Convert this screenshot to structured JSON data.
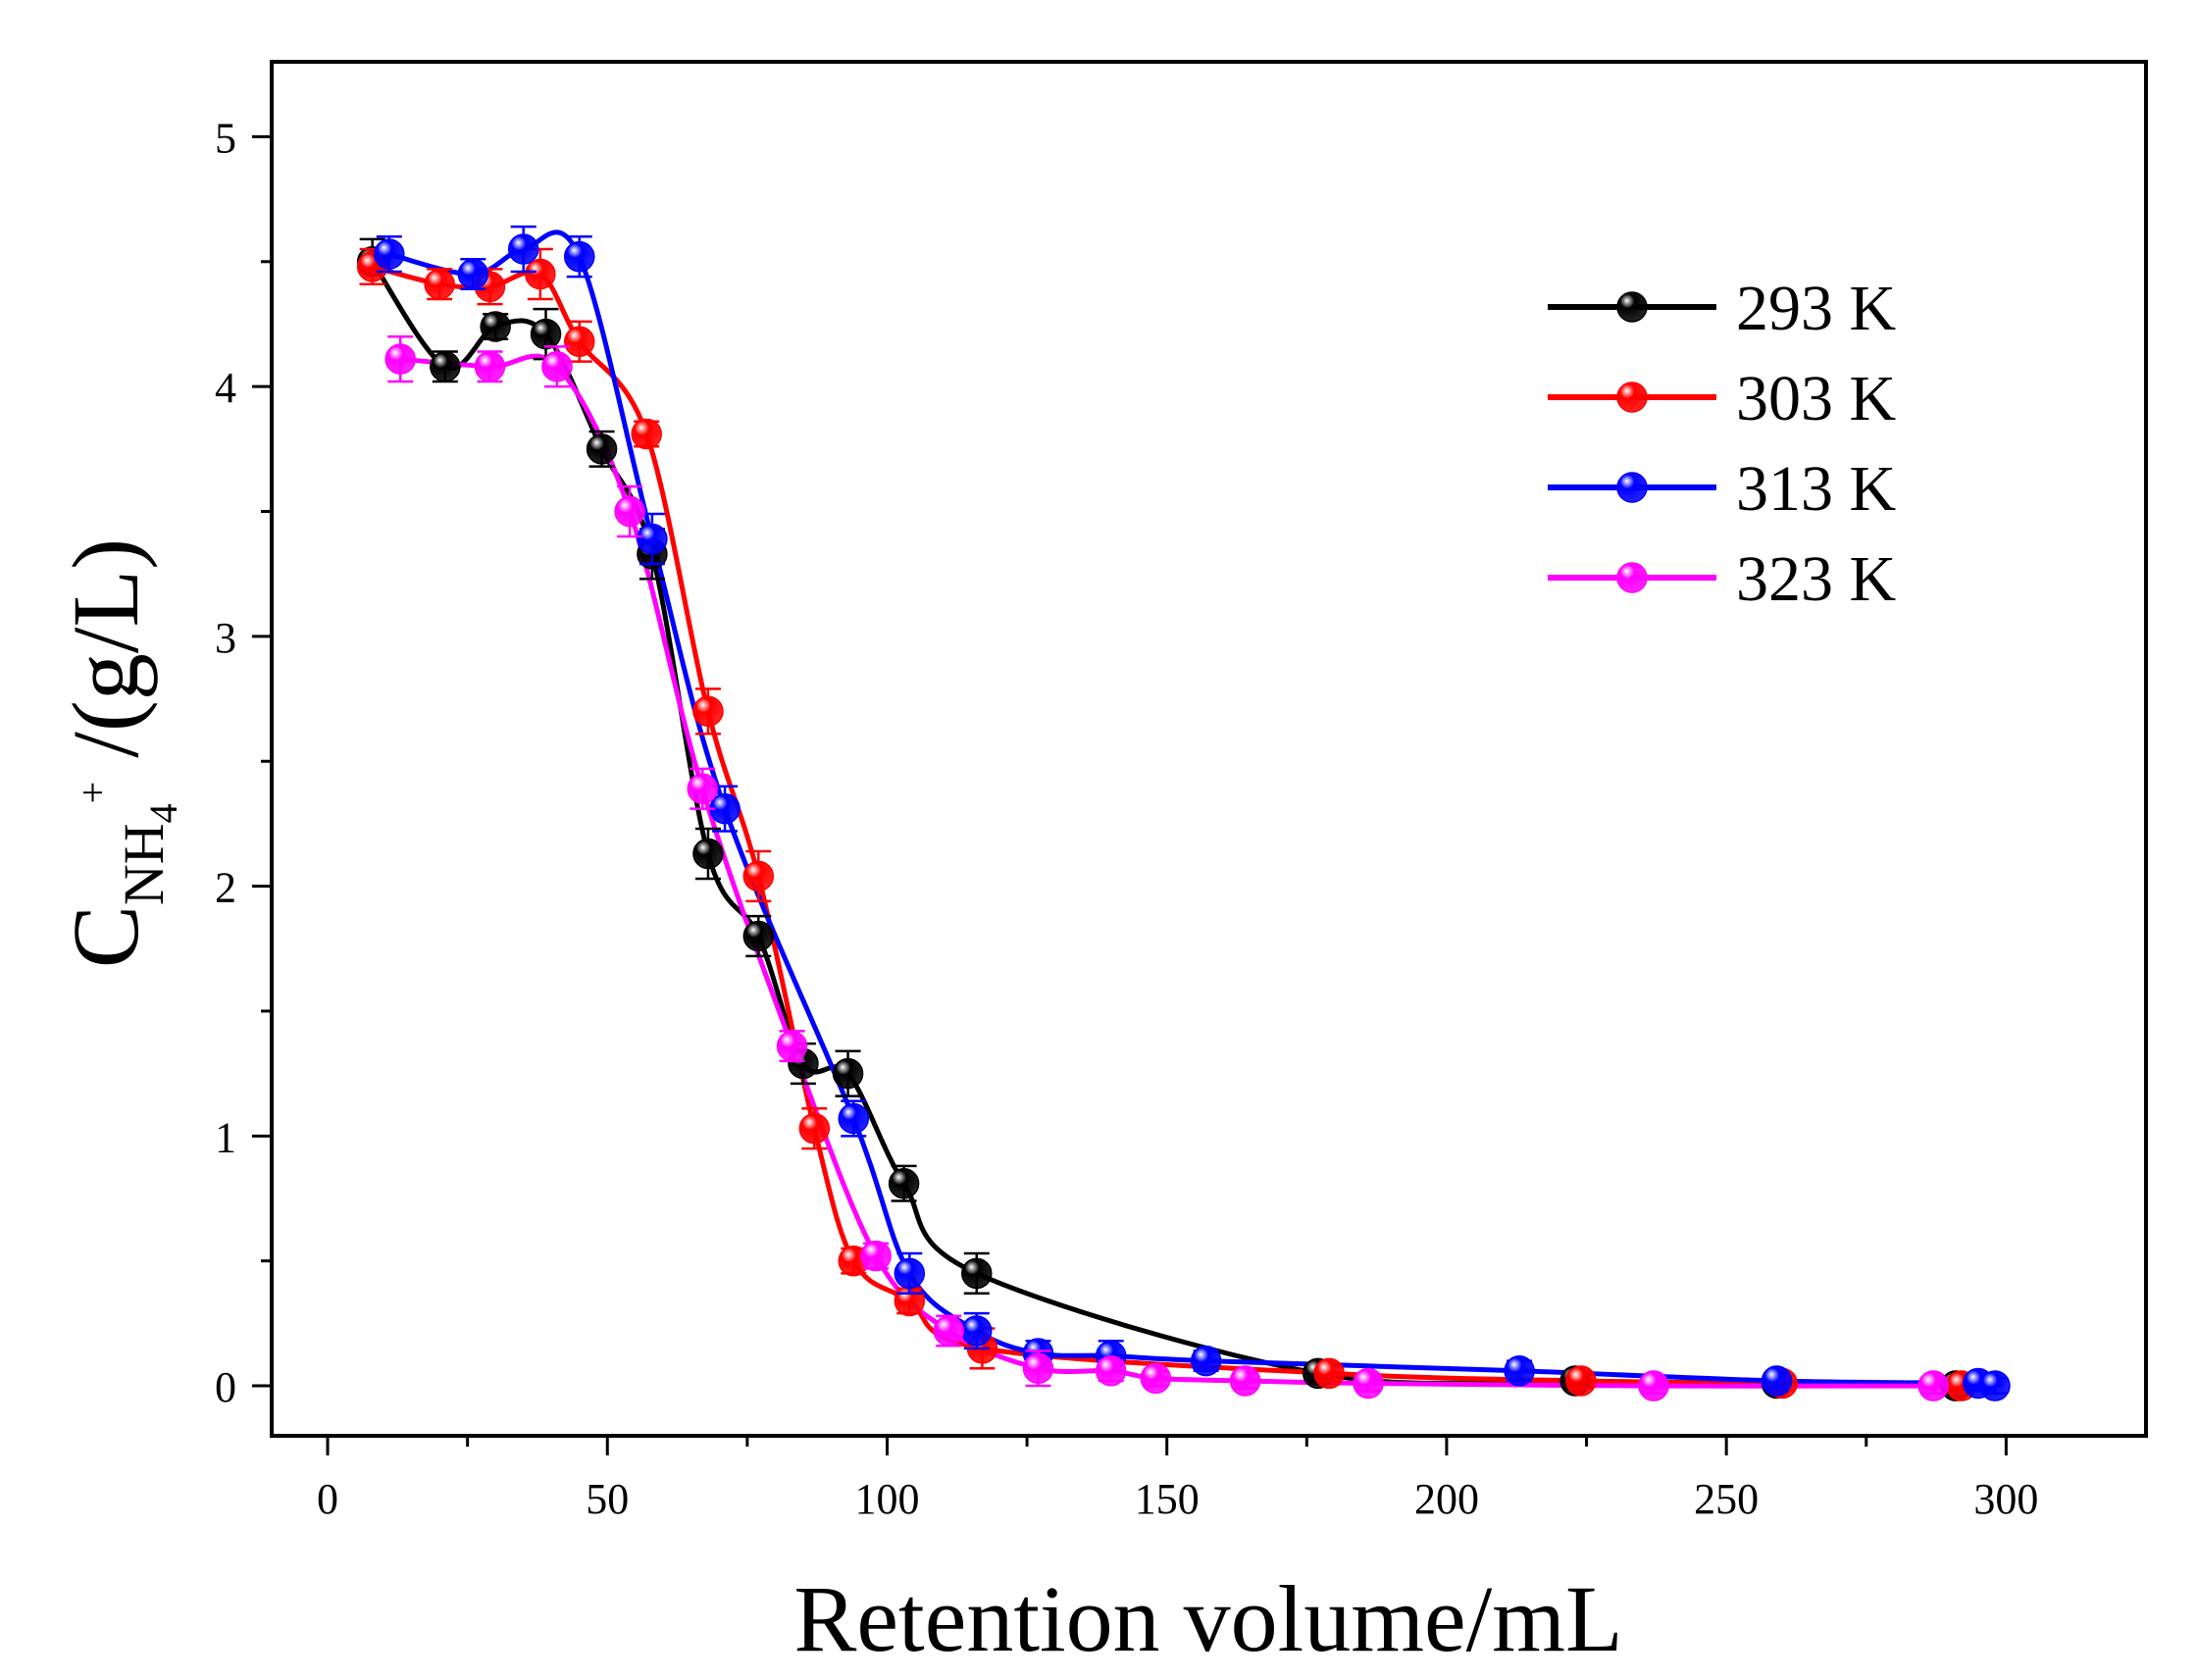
{
  "chart_data": {
    "type": "line",
    "title": "",
    "xlabel": "Retention volume/mL",
    "ylabel": {
      "main": "C",
      "subscript": "NH",
      "sub_subscript": "4",
      "superscript": "+",
      "unit": " /(g/L)"
    },
    "xlim": [
      -10,
      325
    ],
    "ylim": [
      -0.2,
      5.3
    ],
    "xticks": [
      0,
      50,
      100,
      150,
      200,
      250,
      300
    ],
    "yticks": [
      0,
      1,
      2,
      3,
      4,
      5
    ],
    "legend_position": "top-right",
    "series": [
      {
        "name": "293 K",
        "color": "#000000",
        "x": [
          8,
          21,
          30,
          39,
          49,
          58,
          68,
          77,
          85,
          93,
          103,
          116,
          177,
          223,
          259,
          291
        ],
        "y": [
          4.5,
          4.08,
          4.24,
          4.21,
          3.75,
          3.33,
          2.13,
          1.8,
          1.29,
          1.25,
          0.81,
          0.45,
          0.05,
          0.02,
          0.01,
          0.0
        ],
        "err": [
          0.09,
          0.06,
          0.05,
          0.1,
          0.07,
          0.1,
          0.1,
          0.08,
          0.08,
          0.09,
          0.07,
          0.08,
          0.03,
          0.03,
          0.03,
          0.03
        ]
      },
      {
        "name": "303 K",
        "color": "#ff0000",
        "x": [
          8,
          20,
          29,
          38,
          45,
          57,
          68,
          77,
          87,
          94,
          104,
          117,
          179,
          224,
          260,
          292
        ],
        "y": [
          4.48,
          4.41,
          4.4,
          4.45,
          4.18,
          3.81,
          2.7,
          2.04,
          1.03,
          0.5,
          0.34,
          0.15,
          0.05,
          0.02,
          0.01,
          0.0
        ],
        "err": [
          0.07,
          0.06,
          0.07,
          0.1,
          0.08,
          0.05,
          0.09,
          0.1,
          0.08,
          0.05,
          0.05,
          0.08,
          0.03,
          0.03,
          0.03,
          0.03
        ]
      },
      {
        "name": "313 K",
        "color": "#0000ff",
        "x": [
          11,
          26,
          35,
          45,
          58,
          71,
          94,
          104,
          116,
          127,
          140,
          157,
          213,
          259,
          295,
          298
        ],
        "y": [
          4.53,
          4.45,
          4.55,
          4.52,
          3.39,
          2.31,
          1.07,
          0.45,
          0.22,
          0.13,
          0.12,
          0.1,
          0.06,
          0.02,
          0.01,
          0.0
        ],
        "err": [
          0.07,
          0.06,
          0.09,
          0.08,
          0.1,
          0.09,
          0.07,
          0.08,
          0.07,
          0.05,
          0.06,
          0.04,
          0.04,
          0.03,
          0.03,
          0.03
        ]
      },
      {
        "name": "323 K",
        "color": "#ff00ff",
        "x": [
          13,
          29,
          41,
          54,
          67,
          83,
          98,
          111,
          127,
          140,
          148,
          164,
          186,
          237,
          287
        ],
        "y": [
          4.11,
          4.08,
          4.08,
          3.5,
          2.39,
          1.36,
          0.52,
          0.22,
          0.07,
          0.06,
          0.03,
          0.02,
          0.01,
          0.0,
          0.0
        ],
        "err": [
          0.09,
          0.06,
          0.08,
          0.1,
          0.08,
          0.06,
          0.05,
          0.06,
          0.07,
          0.04,
          0.03,
          0.03,
          0.03,
          0.03,
          0.03
        ]
      }
    ]
  }
}
